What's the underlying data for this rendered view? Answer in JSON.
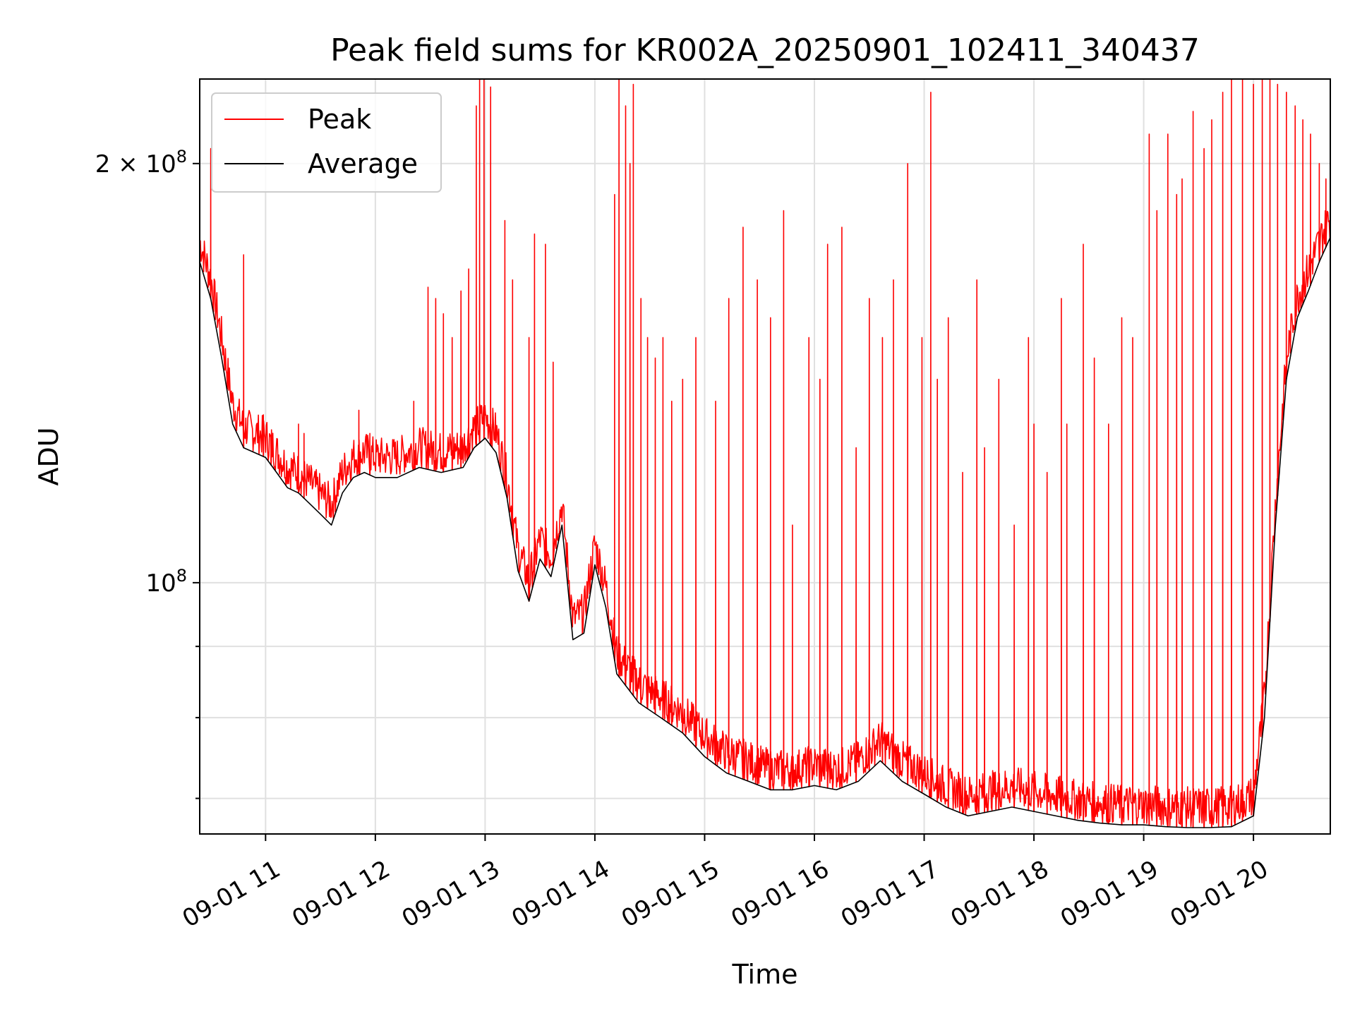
{
  "chart_data": {
    "type": "line",
    "title": "Peak field sums for KR002A_20250901_102411_340437",
    "xlabel": "Time",
    "ylabel": "ADU",
    "yscale": "log",
    "ylim": [
      66000000,
      230000000
    ],
    "xlim_hours": [
      10.4,
      20.7
    ],
    "x_ticks": [
      {
        "label": "09-01 11",
        "value": 11
      },
      {
        "label": "09-01 12",
        "value": 12
      },
      {
        "label": "09-01 13",
        "value": 13
      },
      {
        "label": "09-01 14",
        "value": 14
      },
      {
        "label": "09-01 15",
        "value": 15
      },
      {
        "label": "09-01 16",
        "value": 16
      },
      {
        "label": "09-01 17",
        "value": 17
      },
      {
        "label": "09-01 18",
        "value": 18
      },
      {
        "label": "09-01 19",
        "value": 19
      },
      {
        "label": "09-01 20",
        "value": 20
      }
    ],
    "y_major_ticks": [
      {
        "base": "10",
        "exp": "8",
        "mantissa": "",
        "value": 100000000
      },
      {
        "base": "10",
        "exp": "8",
        "mantissa": "2",
        "value": 200000000
      }
    ],
    "y_minor_ticks": [
      70000000,
      80000000,
      90000000
    ],
    "grid": true,
    "legend": {
      "position": "top-left",
      "entries": [
        {
          "name": "Peak",
          "color": "#ff0000"
        },
        {
          "name": "Average",
          "color": "#000000"
        }
      ]
    },
    "series": [
      {
        "name": "Average",
        "color": "#000000",
        "x": [
          10.4,
          10.5,
          10.6,
          10.7,
          10.8,
          10.9,
          11.0,
          11.1,
          11.2,
          11.3,
          11.4,
          11.5,
          11.6,
          11.7,
          11.8,
          11.9,
          12.0,
          12.2,
          12.4,
          12.6,
          12.8,
          12.9,
          13.0,
          13.1,
          13.2,
          13.3,
          13.4,
          13.5,
          13.6,
          13.7,
          13.8,
          13.9,
          14.0,
          14.1,
          14.2,
          14.4,
          14.6,
          14.8,
          15.0,
          15.2,
          15.4,
          15.6,
          15.8,
          16.0,
          16.2,
          16.4,
          16.6,
          16.8,
          17.0,
          17.2,
          17.4,
          17.6,
          17.8,
          18.0,
          18.2,
          18.4,
          18.6,
          18.8,
          19.0,
          19.2,
          19.4,
          19.6,
          19.8,
          20.0,
          20.1,
          20.2,
          20.3,
          20.4,
          20.5,
          20.6,
          20.7
        ],
        "y": [
          170000000,
          160000000,
          145000000,
          130000000,
          125000000,
          124000000,
          123000000,
          120000000,
          117000000,
          116000000,
          114000000,
          112000000,
          110000000,
          116000000,
          119000000,
          120000000,
          119000000,
          119000000,
          121000000,
          120000000,
          121000000,
          125000000,
          127000000,
          124000000,
          115000000,
          102000000,
          97000000,
          104000000,
          101000000,
          110000000,
          91000000,
          92000000,
          103000000,
          96000000,
          86000000,
          82000000,
          80000000,
          78000000,
          75000000,
          73000000,
          72000000,
          71000000,
          71000000,
          71500000,
          71000000,
          72000000,
          74500000,
          72000000,
          70500000,
          69000000,
          68000000,
          68500000,
          69000000,
          68500000,
          68000000,
          67500000,
          67200000,
          67000000,
          67000000,
          66800000,
          66700000,
          66700000,
          66800000,
          68000000,
          80000000,
          110000000,
          140000000,
          155000000,
          162000000,
          170000000,
          177000000
        ]
      },
      {
        "name": "Peak",
        "color": "#ff0000",
        "spike_x": [
          10.5,
          10.8,
          10.98,
          11.05,
          11.3,
          11.35,
          11.85,
          11.95,
          12.35,
          12.48,
          12.55,
          12.62,
          12.7,
          12.78,
          12.85,
          12.92,
          12.95,
          12.99,
          13.05,
          13.18,
          13.25,
          13.4,
          13.45,
          13.55,
          13.62,
          14.18,
          14.22,
          14.28,
          14.32,
          14.35,
          14.42,
          14.48,
          14.55,
          14.62,
          14.7,
          14.8,
          14.92,
          15.1,
          15.22,
          15.35,
          15.48,
          15.6,
          15.72,
          15.8,
          15.95,
          16.05,
          16.12,
          16.25,
          16.38,
          16.5,
          16.62,
          16.72,
          16.85,
          16.98,
          17.06,
          17.12,
          17.22,
          17.35,
          17.48,
          17.55,
          17.68,
          17.82,
          17.95,
          18.0,
          18.12,
          18.25,
          18.3,
          18.45,
          18.55,
          18.68,
          18.8,
          18.9,
          19.05,
          19.12,
          19.22,
          19.3,
          19.35,
          19.45,
          19.55,
          19.62,
          19.72,
          19.8,
          19.9,
          20.0,
          20.08,
          20.15,
          20.22,
          20.3,
          20.38,
          20.45,
          20.52,
          20.6,
          20.66
        ],
        "spike_y": [
          205000000,
          172000000,
          132000000,
          125000000,
          130000000,
          128000000,
          133000000,
          128000000,
          135000000,
          163000000,
          160000000,
          156000000,
          150000000,
          162000000,
          168000000,
          220000000,
          235000000,
          230000000,
          227000000,
          182000000,
          165000000,
          150000000,
          178000000,
          175000000,
          144000000,
          190000000,
          230000000,
          220000000,
          200000000,
          228000000,
          160000000,
          150000000,
          145000000,
          150000000,
          135000000,
          140000000,
          150000000,
          135000000,
          160000000,
          180000000,
          165000000,
          155000000,
          185000000,
          110000000,
          150000000,
          140000000,
          175000000,
          180000000,
          125000000,
          160000000,
          150000000,
          165000000,
          200000000,
          150000000,
          225000000,
          140000000,
          155000000,
          120000000,
          165000000,
          125000000,
          140000000,
          110000000,
          150000000,
          130000000,
          120000000,
          160000000,
          130000000,
          175000000,
          145000000,
          130000000,
          155000000,
          150000000,
          210000000,
          185000000,
          210000000,
          190000000,
          195000000,
          218000000,
          205000000,
          215000000,
          225000000,
          235000000,
          230000000,
          228000000,
          230000000,
          232000000,
          228000000,
          225000000,
          220000000,
          215000000,
          210000000,
          200000000,
          195000000
        ]
      }
    ]
  }
}
